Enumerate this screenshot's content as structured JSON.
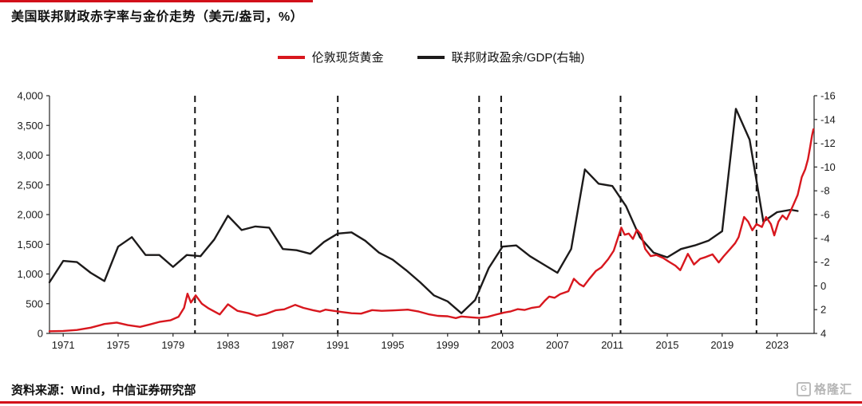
{
  "page": {
    "title": "美国联邦财政赤字率与金价走势（美元/盎司，%）",
    "source": "资料来源：Wind，中信证券研究部",
    "watermark": "格隆汇",
    "watermark_icon": "G",
    "accent_red": "#d2101a"
  },
  "legend": [
    {
      "label": "伦敦现货黄金",
      "color": "#d8171e"
    },
    {
      "label": "联邦财政盈余/GDP(右轴)",
      "color": "#1c1a1a"
    }
  ],
  "chart_data": {
    "type": "line",
    "title": "美国联邦财政赤字率与金价走势（美元/盎司，%）",
    "xlim": [
      1970,
      2025.7
    ],
    "x_ticks": [
      1971,
      1975,
      1979,
      1983,
      1987,
      1991,
      1995,
      1999,
      2003,
      2007,
      2011,
      2015,
      2019,
      2023
    ],
    "left_axis": {
      "labels": [
        "4,000",
        "3,500",
        "3,000",
        "2,500",
        "2,000",
        "1,500",
        "1,000",
        "500",
        "0"
      ],
      "lim": [
        0,
        4000
      ]
    },
    "right_axis": {
      "labels": [
        "-16",
        "-14",
        "-12",
        "-10",
        "-8",
        "-6",
        "-4",
        "-2",
        "0",
        "2",
        "4"
      ],
      "lim": [
        -16,
        4
      ],
      "inverted": true
    },
    "dashed_vlines": [
      1980.6,
      1991,
      2001.3,
      2002.9,
      2011.6,
      2021.5
    ],
    "grid": false,
    "legend_position": "top-center",
    "series": [
      {
        "name": "联邦财政盈余/GDP(右轴)",
        "axis": "right",
        "color": "#1c1a1a",
        "unit": "% of GDP",
        "points": [
          [
            1970,
            -0.3
          ],
          [
            1971,
            -2.1
          ],
          [
            1972,
            -2.0
          ],
          [
            1973,
            -1.1
          ],
          [
            1974,
            -0.4
          ],
          [
            1975,
            -3.3
          ],
          [
            1976,
            -4.1
          ],
          [
            1977,
            -2.6
          ],
          [
            1978,
            -2.6
          ],
          [
            1979,
            -1.6
          ],
          [
            1980,
            -2.6
          ],
          [
            1981,
            -2.5
          ],
          [
            1982,
            -3.9
          ],
          [
            1983,
            -5.9
          ],
          [
            1984,
            -4.7
          ],
          [
            1985,
            -5.0
          ],
          [
            1986,
            -4.9
          ],
          [
            1987,
            -3.1
          ],
          [
            1988,
            -3.0
          ],
          [
            1989,
            -2.7
          ],
          [
            1990,
            -3.7
          ],
          [
            1991,
            -4.4
          ],
          [
            1992,
            -4.5
          ],
          [
            1993,
            -3.8
          ],
          [
            1994,
            -2.8
          ],
          [
            1995,
            -2.2
          ],
          [
            1996,
            -1.3
          ],
          [
            1997,
            -0.3
          ],
          [
            1998,
            0.8
          ],
          [
            1999,
            1.3
          ],
          [
            2000,
            2.3
          ],
          [
            2001,
            1.2
          ],
          [
            2002,
            -1.5
          ],
          [
            2003,
            -3.3
          ],
          [
            2004,
            -3.4
          ],
          [
            2005,
            -2.5
          ],
          [
            2006,
            -1.8
          ],
          [
            2007,
            -1.1
          ],
          [
            2008,
            -3.1
          ],
          [
            2009,
            -9.8
          ],
          [
            2010,
            -8.6
          ],
          [
            2011,
            -8.4
          ],
          [
            2012,
            -6.7
          ],
          [
            2013,
            -4.1
          ],
          [
            2014,
            -2.8
          ],
          [
            2015,
            -2.4
          ],
          [
            2016,
            -3.1
          ],
          [
            2017,
            -3.4
          ],
          [
            2018,
            -3.8
          ],
          [
            2019,
            -4.6
          ],
          [
            2020,
            -14.9
          ],
          [
            2021,
            -12.3
          ],
          [
            2022,
            -5.4
          ],
          [
            2023,
            -6.2
          ],
          [
            2024,
            -6.4
          ],
          [
            2024.5,
            -6.3
          ]
        ]
      },
      {
        "name": "伦敦现货黄金",
        "axis": "left",
        "color": "#d8171e",
        "unit": "USD/oz",
        "points": [
          [
            1970,
            36
          ],
          [
            1971,
            41
          ],
          [
            1972,
            58
          ],
          [
            1973,
            97
          ],
          [
            1974,
            159
          ],
          [
            1974.9,
            183
          ],
          [
            1975.7,
            140
          ],
          [
            1976.6,
            110
          ],
          [
            1977.3,
            150
          ],
          [
            1978,
            193
          ],
          [
            1978.8,
            220
          ],
          [
            1979.4,
            280
          ],
          [
            1979.8,
            430
          ],
          [
            1980.05,
            668
          ],
          [
            1980.3,
            520
          ],
          [
            1980.65,
            640
          ],
          [
            1981.1,
            500
          ],
          [
            1981.6,
            420
          ],
          [
            1982.4,
            320
          ],
          [
            1983,
            490
          ],
          [
            1983.7,
            380
          ],
          [
            1984.5,
            340
          ],
          [
            1985.1,
            295
          ],
          [
            1985.8,
            330
          ],
          [
            1986.5,
            390
          ],
          [
            1987.1,
            405
          ],
          [
            1987.9,
            480
          ],
          [
            1988.5,
            430
          ],
          [
            1989.2,
            390
          ],
          [
            1989.7,
            367
          ],
          [
            1990.1,
            400
          ],
          [
            1990.7,
            380
          ],
          [
            1991.3,
            360
          ],
          [
            1992,
            340
          ],
          [
            1992.7,
            333
          ],
          [
            1993.5,
            392
          ],
          [
            1994.2,
            380
          ],
          [
            1995,
            386
          ],
          [
            1996.1,
            400
          ],
          [
            1996.9,
            368
          ],
          [
            1997.6,
            324
          ],
          [
            1998.3,
            295
          ],
          [
            1999,
            288
          ],
          [
            1999.6,
            258
          ],
          [
            2000,
            285
          ],
          [
            2000.8,
            270
          ],
          [
            2001.3,
            260
          ],
          [
            2001.9,
            278
          ],
          [
            2002.5,
            315
          ],
          [
            2003.1,
            350
          ],
          [
            2003.6,
            370
          ],
          [
            2004.1,
            408
          ],
          [
            2004.6,
            395
          ],
          [
            2005.1,
            428
          ],
          [
            2005.7,
            450
          ],
          [
            2006.1,
            555
          ],
          [
            2006.4,
            620
          ],
          [
            2006.8,
            600
          ],
          [
            2007.2,
            660
          ],
          [
            2007.8,
            710
          ],
          [
            2008.2,
            920
          ],
          [
            2008.6,
            830
          ],
          [
            2008.9,
            790
          ],
          [
            2009.3,
            910
          ],
          [
            2009.8,
            1050
          ],
          [
            2010.2,
            1110
          ],
          [
            2010.7,
            1250
          ],
          [
            2011.1,
            1390
          ],
          [
            2011.65,
            1780
          ],
          [
            2011.9,
            1660
          ],
          [
            2012.2,
            1680
          ],
          [
            2012.5,
            1590
          ],
          [
            2012.8,
            1745
          ],
          [
            2013.1,
            1660
          ],
          [
            2013.4,
            1420
          ],
          [
            2013.8,
            1300
          ],
          [
            2014.2,
            1320
          ],
          [
            2014.7,
            1270
          ],
          [
            2015.1,
            1210
          ],
          [
            2015.6,
            1140
          ],
          [
            2015.95,
            1065
          ],
          [
            2016.5,
            1340
          ],
          [
            2016.95,
            1160
          ],
          [
            2017.4,
            1255
          ],
          [
            2017.8,
            1285
          ],
          [
            2018.3,
            1330
          ],
          [
            2018.75,
            1195
          ],
          [
            2019.1,
            1295
          ],
          [
            2019.6,
            1425
          ],
          [
            2019.95,
            1520
          ],
          [
            2020.2,
            1620
          ],
          [
            2020.6,
            1960
          ],
          [
            2020.9,
            1880
          ],
          [
            2021.2,
            1735
          ],
          [
            2021.5,
            1840
          ],
          [
            2021.9,
            1790
          ],
          [
            2022.2,
            1960
          ],
          [
            2022.55,
            1840
          ],
          [
            2022.8,
            1650
          ],
          [
            2023.1,
            1880
          ],
          [
            2023.4,
            1985
          ],
          [
            2023.7,
            1920
          ],
          [
            2023.95,
            2040
          ],
          [
            2024.2,
            2170
          ],
          [
            2024.5,
            2330
          ],
          [
            2024.8,
            2630
          ],
          [
            2025.05,
            2760
          ],
          [
            2025.25,
            2930
          ],
          [
            2025.4,
            3120
          ],
          [
            2025.55,
            3330
          ],
          [
            2025.65,
            3435
          ]
        ]
      }
    ]
  }
}
